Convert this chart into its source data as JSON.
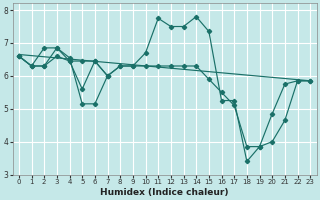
{
  "xlabel": "Humidex (Indice chaleur)",
  "xlim": [
    -0.5,
    23.5
  ],
  "ylim": [
    3,
    8.2
  ],
  "yticks": [
    3,
    4,
    5,
    6,
    7,
    8
  ],
  "xticks": [
    0,
    1,
    2,
    3,
    4,
    5,
    6,
    7,
    8,
    9,
    10,
    11,
    12,
    13,
    14,
    15,
    16,
    17,
    18,
    19,
    20,
    21,
    22,
    23
  ],
  "background_color": "#c5e8e8",
  "grid_color": "#ffffff",
  "line_color": "#1a7068",
  "lines": [
    {
      "x": [
        0,
        1,
        2,
        3,
        4,
        5,
        6,
        7,
        8,
        9,
        10,
        11,
        12,
        13,
        14,
        15,
        16,
        17,
        18,
        19,
        20,
        21,
        22,
        23
      ],
      "y": [
        6.6,
        6.3,
        6.3,
        6.85,
        6.45,
        5.6,
        6.45,
        6.0,
        6.3,
        6.3,
        6.7,
        7.75,
        7.5,
        7.5,
        7.8,
        7.35,
        5.25,
        5.25,
        3.4,
        3.85,
        4.85,
        5.75,
        5.85,
        5.85
      ],
      "marker": true
    },
    {
      "x": [
        0,
        1,
        2,
        3,
        4,
        5,
        6,
        7
      ],
      "y": [
        6.6,
        6.3,
        6.85,
        6.85,
        6.55,
        5.15,
        5.15,
        6.0
      ],
      "marker": true
    },
    {
      "x": [
        0,
        23
      ],
      "y": [
        6.65,
        5.85
      ],
      "marker": false
    },
    {
      "x": [
        0,
        1,
        2,
        3,
        4,
        5,
        6,
        7,
        8,
        9,
        10,
        11,
        12,
        13,
        14,
        15,
        16,
        17,
        18,
        19,
        20,
        21,
        22,
        23
      ],
      "y": [
        6.6,
        6.3,
        6.3,
        6.6,
        6.45,
        6.45,
        6.45,
        6.0,
        6.3,
        6.3,
        6.3,
        6.3,
        6.3,
        6.3,
        6.3,
        5.9,
        5.5,
        5.1,
        3.85,
        3.85,
        4.0,
        4.65,
        5.85,
        5.85
      ],
      "marker": true
    }
  ]
}
